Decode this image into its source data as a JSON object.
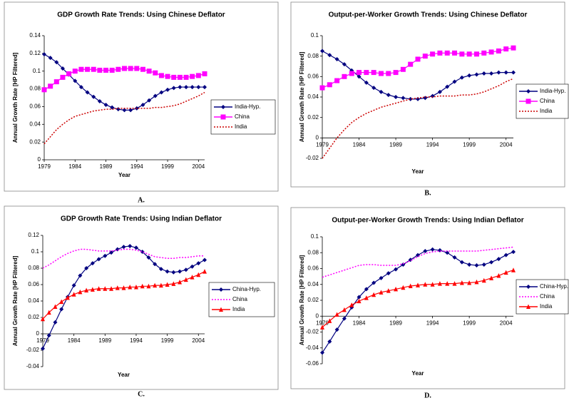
{
  "chart_data": [
    {
      "type": "line",
      "title": "GDP Growth Rate Trends: Using Chinese Deflator",
      "caption": "A.",
      "xlabel": "Year",
      "ylabel": "Annual Growth Rate [HP Filtered]",
      "x": [
        1979,
        1980,
        1981,
        1982,
        1983,
        1984,
        1985,
        1986,
        1987,
        1988,
        1989,
        1990,
        1991,
        1992,
        1993,
        1994,
        1995,
        1996,
        1997,
        1998,
        1999,
        2000,
        2001,
        2002,
        2003,
        2004,
        2005
      ],
      "xlim": [
        1979,
        2005
      ],
      "xticks": [
        1979,
        1984,
        1989,
        1994,
        1999,
        2004
      ],
      "ylim": [
        0,
        0.14
      ],
      "yticks": [
        0,
        0.02,
        0.04,
        0.06,
        0.08,
        0.1,
        0.12,
        0.14
      ],
      "legend": "right",
      "series": [
        {
          "name": "India-Hyp.",
          "color": "#000080",
          "marker": "diamond",
          "line_style": "solid",
          "values": [
            0.119,
            0.115,
            0.11,
            0.103,
            0.096,
            0.089,
            0.082,
            0.076,
            0.071,
            0.066,
            0.062,
            0.059,
            0.057,
            0.056,
            0.056,
            0.058,
            0.062,
            0.067,
            0.072,
            0.076,
            0.079,
            0.081,
            0.082,
            0.082,
            0.082,
            0.082,
            0.082
          ]
        },
        {
          "name": "China",
          "color": "#ff00ff",
          "marker": "square",
          "line_style": "solid",
          "values": [
            0.079,
            0.083,
            0.088,
            0.093,
            0.097,
            0.1,
            0.102,
            0.102,
            0.102,
            0.101,
            0.101,
            0.101,
            0.102,
            0.103,
            0.103,
            0.103,
            0.102,
            0.1,
            0.098,
            0.095,
            0.094,
            0.093,
            0.093,
            0.093,
            0.094,
            0.095,
            0.097
          ]
        },
        {
          "name": "India",
          "color": "#cc0000",
          "line_style": "dotted",
          "values": [
            0.018,
            0.026,
            0.034,
            0.04,
            0.045,
            0.049,
            0.051,
            0.053,
            0.055,
            0.056,
            0.057,
            0.057,
            0.058,
            0.058,
            0.058,
            0.058,
            0.058,
            0.058,
            0.059,
            0.059,
            0.06,
            0.061,
            0.063,
            0.066,
            0.069,
            0.072,
            0.076
          ]
        }
      ]
    },
    {
      "type": "line",
      "title": "Output-per-Worker Growth Trends: Using Chinese Deflator",
      "caption": "B.",
      "xlabel": "Year",
      "ylabel": "Annual Growth Rate [HP Filtered]",
      "x": [
        1979,
        1980,
        1981,
        1982,
        1983,
        1984,
        1985,
        1986,
        1987,
        1988,
        1989,
        1990,
        1991,
        1992,
        1993,
        1994,
        1995,
        1996,
        1997,
        1998,
        1999,
        2000,
        2001,
        2002,
        2003,
        2004,
        2005
      ],
      "xlim": [
        1979,
        2005
      ],
      "xticks": [
        1979,
        1984,
        1989,
        1994,
        1999,
        2004
      ],
      "ylim": [
        -0.02,
        0.1
      ],
      "yticks": [
        -0.02,
        0,
        0.02,
        0.04,
        0.06,
        0.08,
        0.1
      ],
      "legend": "right",
      "series": [
        {
          "name": "India-Hyp.",
          "color": "#000080",
          "marker": "diamond",
          "line_style": "solid",
          "values": [
            0.085,
            0.081,
            0.077,
            0.072,
            0.066,
            0.06,
            0.054,
            0.049,
            0.045,
            0.042,
            0.04,
            0.039,
            0.038,
            0.038,
            0.039,
            0.041,
            0.045,
            0.05,
            0.055,
            0.059,
            0.061,
            0.062,
            0.063,
            0.063,
            0.064,
            0.064,
            0.064
          ]
        },
        {
          "name": "China",
          "color": "#ff00ff",
          "marker": "square",
          "line_style": "solid",
          "values": [
            0.049,
            0.052,
            0.056,
            0.06,
            0.063,
            0.064,
            0.064,
            0.064,
            0.063,
            0.063,
            0.064,
            0.067,
            0.072,
            0.077,
            0.08,
            0.082,
            0.083,
            0.083,
            0.083,
            0.082,
            0.082,
            0.082,
            0.083,
            0.084,
            0.085,
            0.087,
            0.088
          ]
        },
        {
          "name": "India",
          "color": "#cc0000",
          "line_style": "dotted",
          "values": [
            -0.02,
            -0.01,
            0.0,
            0.008,
            0.015,
            0.02,
            0.024,
            0.027,
            0.03,
            0.032,
            0.034,
            0.036,
            0.038,
            0.039,
            0.04,
            0.04,
            0.041,
            0.041,
            0.041,
            0.042,
            0.042,
            0.043,
            0.045,
            0.048,
            0.051,
            0.055,
            0.058
          ]
        }
      ]
    },
    {
      "type": "line",
      "title": "GDP Growth Rate Trends: Using Indian Deflator",
      "caption": "C.",
      "xlabel": "Year",
      "ylabel": "Annual Growth Rate [HP Filtered]",
      "x": [
        1979,
        1980,
        1981,
        1982,
        1983,
        1984,
        1985,
        1986,
        1987,
        1988,
        1989,
        1990,
        1991,
        1992,
        1993,
        1994,
        1995,
        1996,
        1997,
        1998,
        1999,
        2000,
        2001,
        2002,
        2003,
        2004,
        2005
      ],
      "xlim": [
        1979,
        2005
      ],
      "xticks": [
        1979,
        1984,
        1989,
        1994,
        1999,
        2004
      ],
      "ylim": [
        -0.04,
        0.12
      ],
      "yticks": [
        -0.04,
        -0.02,
        0,
        0.02,
        0.04,
        0.06,
        0.08,
        0.1,
        0.12
      ],
      "legend": "right",
      "series": [
        {
          "name": "China-Hyp.",
          "color": "#000080",
          "marker": "diamond",
          "line_style": "solid",
          "values": [
            -0.018,
            -0.002,
            0.014,
            0.03,
            0.045,
            0.059,
            0.071,
            0.08,
            0.086,
            0.091,
            0.095,
            0.099,
            0.103,
            0.106,
            0.107,
            0.105,
            0.1,
            0.093,
            0.085,
            0.079,
            0.076,
            0.075,
            0.076,
            0.078,
            0.082,
            0.086,
            0.09
          ]
        },
        {
          "name": "China",
          "color": "#ff00ff",
          "line_style": "dotted",
          "values": [
            0.08,
            0.084,
            0.089,
            0.094,
            0.098,
            0.101,
            0.103,
            0.103,
            0.102,
            0.101,
            0.101,
            0.101,
            0.102,
            0.103,
            0.103,
            0.102,
            0.1,
            0.097,
            0.094,
            0.093,
            0.092,
            0.092,
            0.093,
            0.093,
            0.094,
            0.095,
            0.095
          ]
        },
        {
          "name": "India",
          "color": "#ff0000",
          "marker": "triangle",
          "line_style": "solid",
          "values": [
            0.018,
            0.026,
            0.033,
            0.039,
            0.044,
            0.048,
            0.051,
            0.053,
            0.054,
            0.055,
            0.055,
            0.055,
            0.056,
            0.056,
            0.057,
            0.057,
            0.058,
            0.058,
            0.059,
            0.059,
            0.06,
            0.061,
            0.063,
            0.066,
            0.069,
            0.072,
            0.076
          ]
        }
      ]
    },
    {
      "type": "line",
      "title": "Output-per-Worker Growth Trends: Using Indian Deflator",
      "caption": "D.",
      "xlabel": "Year",
      "ylabel": "Annual Growth Rate [HP Filtered]",
      "x": [
        1979,
        1980,
        1981,
        1982,
        1983,
        1984,
        1985,
        1986,
        1987,
        1988,
        1989,
        1990,
        1991,
        1992,
        1993,
        1994,
        1995,
        1996,
        1997,
        1998,
        1999,
        2000,
        2001,
        2002,
        2003,
        2004,
        2005
      ],
      "xlim": [
        1979,
        2005
      ],
      "xticks": [
        1979,
        1984,
        1989,
        1994,
        1999,
        2004
      ],
      "ylim": [
        -0.06,
        0.1
      ],
      "yticks": [
        -0.06,
        -0.04,
        -0.02,
        0,
        0.02,
        0.04,
        0.06,
        0.08,
        0.1
      ],
      "legend": "right",
      "series": [
        {
          "name": "China-Hyp.",
          "color": "#000080",
          "marker": "diamond",
          "line_style": "solid",
          "values": [
            -0.046,
            -0.032,
            -0.017,
            -0.003,
            0.011,
            0.024,
            0.034,
            0.042,
            0.048,
            0.054,
            0.059,
            0.065,
            0.071,
            0.077,
            0.082,
            0.084,
            0.083,
            0.08,
            0.074,
            0.068,
            0.065,
            0.064,
            0.065,
            0.068,
            0.072,
            0.077,
            0.081
          ]
        },
        {
          "name": "China",
          "color": "#ff00ff",
          "line_style": "dotted",
          "values": [
            0.049,
            0.052,
            0.055,
            0.058,
            0.061,
            0.064,
            0.065,
            0.065,
            0.064,
            0.064,
            0.064,
            0.066,
            0.07,
            0.075,
            0.079,
            0.081,
            0.082,
            0.082,
            0.082,
            0.082,
            0.082,
            0.082,
            0.083,
            0.084,
            0.085,
            0.086,
            0.087
          ]
        },
        {
          "name": "India",
          "color": "#ff0000",
          "marker": "triangle",
          "line_style": "solid",
          "values": [
            -0.014,
            -0.006,
            0.002,
            0.008,
            0.014,
            0.019,
            0.023,
            0.027,
            0.03,
            0.032,
            0.034,
            0.036,
            0.038,
            0.039,
            0.04,
            0.04,
            0.041,
            0.041,
            0.041,
            0.042,
            0.042,
            0.043,
            0.045,
            0.048,
            0.051,
            0.055,
            0.058
          ]
        }
      ]
    }
  ]
}
